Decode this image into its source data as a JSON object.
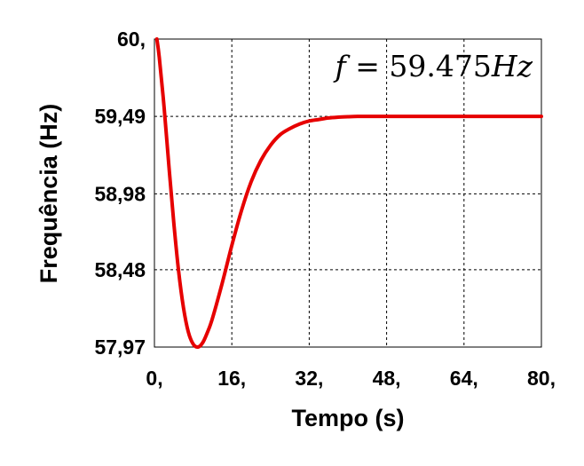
{
  "chart_data": {
    "type": "line",
    "xlabel": "Tempo (s)",
    "ylabel": "Frequência (Hz)",
    "xlim": [
      0,
      80
    ],
    "ylim": [
      57.97,
      60
    ],
    "x_ticks": [
      0,
      16,
      32,
      48,
      64,
      80
    ],
    "x_tick_labels": [
      "0,",
      "16,",
      "32,",
      "48,",
      "64,",
      "80,"
    ],
    "y_ticks": [
      60,
      59.49,
      58.98,
      58.48,
      57.97
    ],
    "y_tick_labels": [
      "60,",
      "59,49",
      "58,98",
      "58,48",
      "57,97"
    ],
    "grid": true,
    "grid_style": "dashed",
    "annotation": {
      "variable": "f",
      "equals": " = ",
      "value": "59.475",
      "unit": "Hz"
    },
    "series": [
      {
        "color": "#e60000",
        "x": [
          0.5,
          1,
          2,
          3,
          4,
          5,
          6,
          7,
          8,
          9,
          10,
          11,
          12,
          14,
          16,
          18,
          20,
          22,
          24,
          26,
          28,
          30,
          32,
          34,
          36,
          38,
          40,
          42,
          44,
          46,
          48,
          52,
          56,
          60,
          64,
          68,
          72,
          76,
          80
        ],
        "y": [
          60.0,
          59.88,
          59.55,
          59.16,
          58.79,
          58.47,
          58.23,
          58.07,
          57.99,
          57.97,
          58.0,
          58.07,
          58.16,
          58.39,
          58.64,
          58.87,
          59.06,
          59.2,
          59.3,
          59.37,
          59.41,
          59.44,
          59.46,
          59.47,
          59.48,
          59.485,
          59.488,
          59.49,
          59.49,
          59.49,
          59.49,
          59.49,
          59.49,
          59.49,
          59.49,
          59.49,
          59.49,
          59.49,
          59.49
        ]
      }
    ]
  }
}
